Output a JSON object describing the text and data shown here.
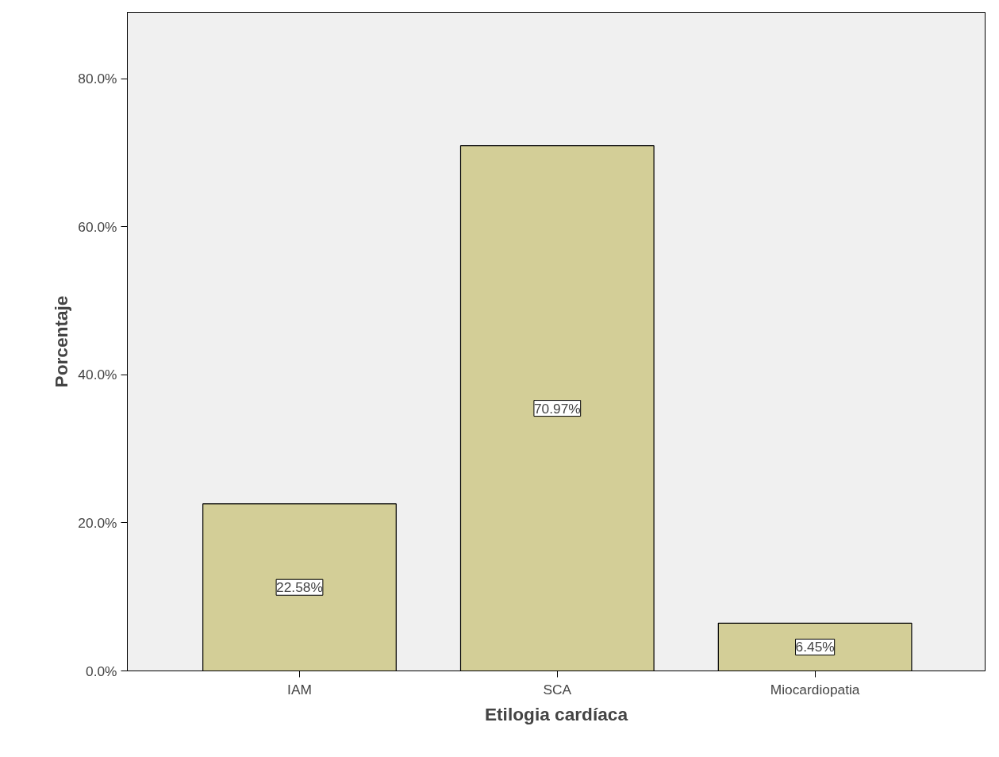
{
  "chart_data": {
    "type": "bar",
    "xlabel": "Etilogia cardíaca",
    "ylabel": "Porcentaje",
    "categories": [
      "IAM",
      "SCA",
      "Miocardiopatia"
    ],
    "values": [
      22.58,
      70.97,
      6.45
    ],
    "value_labels": [
      "22.58%",
      "70.97%",
      "6.45%"
    ],
    "color": "#d3ce97",
    "ylim": [
      0,
      89
    ],
    "yticks": [
      {
        "value": 0,
        "label": "0.0%"
      },
      {
        "value": 20,
        "label": "20.0%"
      },
      {
        "value": 40,
        "label": "40.0%"
      },
      {
        "value": 60,
        "label": "60.0%"
      },
      {
        "value": 80,
        "label": "80.0%"
      }
    ],
    "grid": false
  }
}
